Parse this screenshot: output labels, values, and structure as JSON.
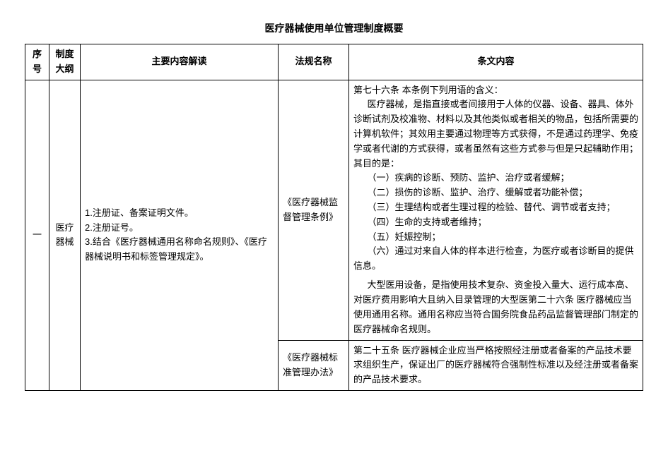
{
  "title": "医疗器械使用单位管理制度概要",
  "headers": {
    "idx": "序号",
    "cat": "制度大纲",
    "main": "主要内容解读",
    "law": "法规名称",
    "clause": "条文内容"
  },
  "row1": {
    "idx": "一",
    "cat": "医疗器械",
    "main_1": "1.注册证、备案证明文件。",
    "main_2": "2.注册证号。",
    "main_3": "3.结合《医疗器械通用名称命名规则》、《医疗器械说明书和标签管理规定》。",
    "law_a": "《医疗器械监督管理条例》",
    "clause_a_p1": "第七十六条 本条例下列用语的含义：",
    "clause_a_p2": "医疗器械，是指直接或者间接用于人体的仪器、设备、器具、体外诊断试剂及校准物、材料以及其他类似或者相关的物品，包括所需要的计算机软件；其效用主要通过物理等方式获得，不是通过药理学、免疫学或者代谢的方式获得，或者虽然有这些方式参与但是只起辅助作用；其目的是：",
    "clause_a_i1": "（一）疾病的诊断、预防、监护、治疗或者缓解；",
    "clause_a_i2": "（二）损伤的诊断、监护、治疗、缓解或者功能补偿；",
    "clause_a_i3": "（三）生理结构或者生理过程的检验、替代、调节或者支持；",
    "clause_a_i4": "（四）生命的支持或者维持；",
    "clause_a_i5": "（五）妊娠控制；",
    "clause_a_i6": "（六）通过对来自人体的样本进行检查，为医疗或者诊断目的提供信息。",
    "clause_a_p3": "大型医用设备，是指使用技术复杂、资金投入量大、运行成本高、对医疗费用影响大且纳入目录管理的大型医第二十六条 医疗器械应当使用通用名称。通用名称应当符合国务院食品药品监督管理部门制定的医疗器械命名规则。",
    "law_b": "《医疗器械标准管理办法》",
    "clause_b": "第二十五条 医疗器械企业应当严格按照经注册或者备案的产品技术要求组织生产，保证出厂的医疗器械符合强制性标准以及经注册或者备案的产品技术要求。"
  }
}
